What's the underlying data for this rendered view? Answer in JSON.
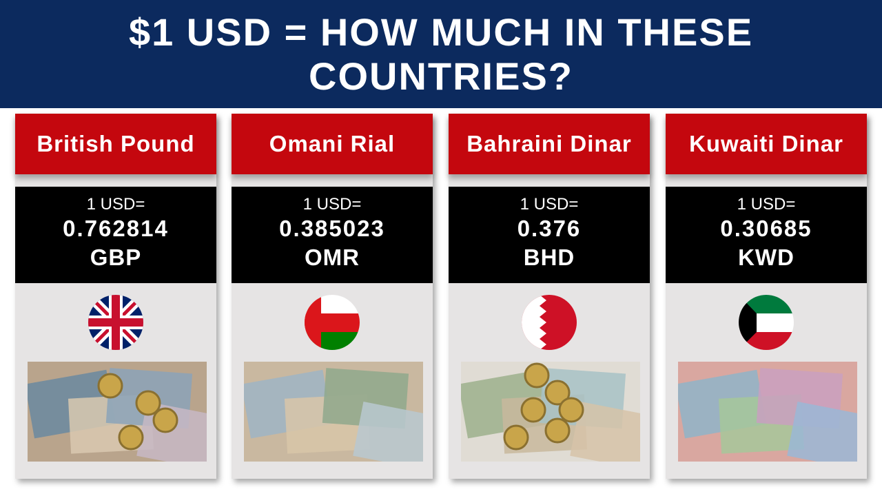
{
  "header": {
    "title": "$1 USD = HOW MUCH IN THESE COUNTRIES?"
  },
  "cards": [
    {
      "name": "British Pound",
      "prefix": "1 USD=",
      "amount": "0.762814",
      "code": "GBP"
    },
    {
      "name": "Omani Rial",
      "prefix": "1 USD=",
      "amount": "0.385023",
      "code": "OMR"
    },
    {
      "name": "Bahraini Dinar",
      "prefix": "1 USD=",
      "amount": "0.376",
      "code": "BHD"
    },
    {
      "name": "Kuwaiti Dinar",
      "prefix": "1 USD=",
      "amount": "0.30685",
      "code": "KWD"
    }
  ]
}
